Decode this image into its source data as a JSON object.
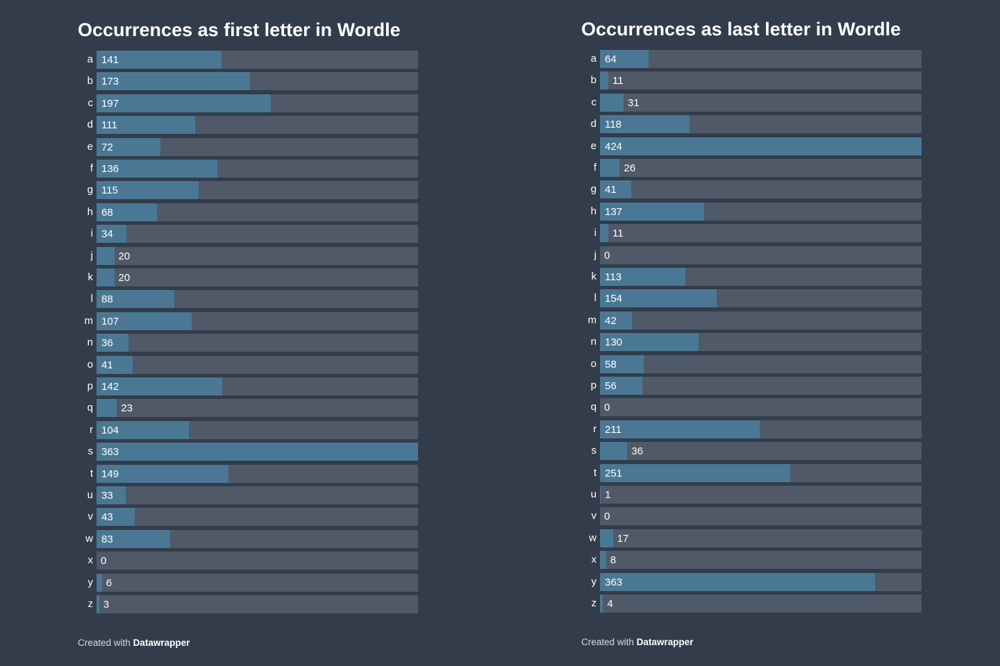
{
  "chart_data": [
    {
      "type": "bar",
      "orientation": "horizontal",
      "title": "Occurrences as first letter in Wordle",
      "categories": [
        "a",
        "b",
        "c",
        "d",
        "e",
        "f",
        "g",
        "h",
        "i",
        "j",
        "k",
        "l",
        "m",
        "n",
        "o",
        "p",
        "q",
        "r",
        "s",
        "t",
        "u",
        "v",
        "w",
        "x",
        "y",
        "z"
      ],
      "values": [
        141,
        173,
        197,
        111,
        72,
        136,
        115,
        68,
        34,
        20,
        20,
        88,
        107,
        36,
        41,
        142,
        23,
        104,
        363,
        149,
        33,
        43,
        83,
        0,
        6,
        3
      ],
      "xlim": [
        0,
        363
      ],
      "grid": false,
      "credit_prefix": "Created with",
      "credit_brand": "Datawrapper"
    },
    {
      "type": "bar",
      "orientation": "horizontal",
      "title": "Occurrences as last letter in Wordle",
      "categories": [
        "a",
        "b",
        "c",
        "d",
        "e",
        "f",
        "g",
        "h",
        "i",
        "j",
        "k",
        "l",
        "m",
        "n",
        "o",
        "p",
        "q",
        "r",
        "s",
        "t",
        "u",
        "v",
        "w",
        "x",
        "y",
        "z"
      ],
      "values": [
        64,
        11,
        31,
        118,
        424,
        26,
        41,
        137,
        11,
        0,
        113,
        154,
        42,
        130,
        58,
        56,
        0,
        211,
        36,
        251,
        1,
        0,
        17,
        8,
        363,
        4
      ],
      "xlim": [
        0,
        424
      ],
      "grid": false,
      "credit_prefix": "Created with",
      "credit_brand": "Datawrapper"
    }
  ],
  "colors": {
    "background": "#333c4a",
    "bar": "#4a7894",
    "track": "#505968",
    "text": "#ffffff"
  }
}
